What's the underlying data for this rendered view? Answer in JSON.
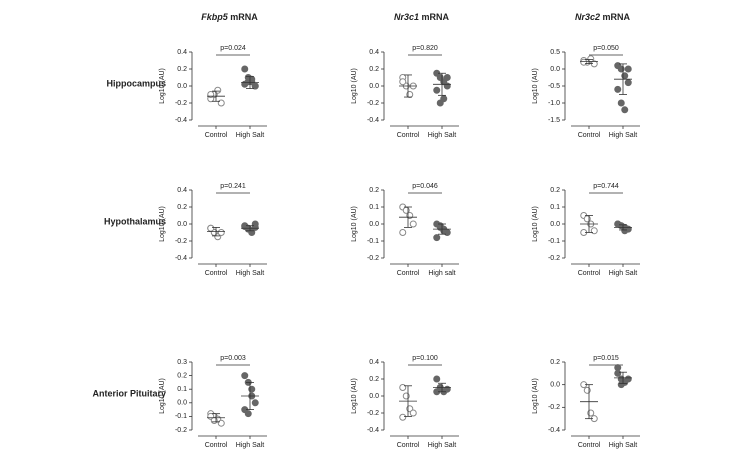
{
  "columns": [
    {
      "gene": "Fkbp5",
      "text": "mRNA"
    },
    {
      "gene": "Nr3c1",
      "text": "mRNA"
    },
    {
      "gene": "Nr3c2",
      "text": "mRNA"
    }
  ],
  "rows": [
    "Hippocampus",
    "Hypothalamus",
    "Anterior Pituitary"
  ],
  "chart_data": [
    {
      "type": "dot",
      "ylabel": "Log10 (AU)",
      "annotation": "p=0.024",
      "ylim": [
        -0.4,
        0.4
      ],
      "yticks": [
        -0.4,
        -0.2,
        {
          "value": 0,
          "label": "0.0"
        },
        0.2,
        0.4
      ],
      "groups": [
        {
          "name": "Control",
          "color": "#888888",
          "filled": false,
          "values": [
            -0.15,
            -0.1,
            -0.05,
            -0.2,
            -0.1
          ],
          "mean": -0.12,
          "sd": 0.06
        },
        {
          "name": "High Salt",
          "color": "#666666",
          "filled": true,
          "values": [
            0.2,
            0.1,
            0.05,
            0.0,
            0.02,
            0.05,
            0.08,
            0.0
          ],
          "mean": 0.04,
          "sd": 0.07
        }
      ]
    },
    {
      "type": "dot",
      "ylabel": "Log10 (AU)",
      "annotation": "p=0.820",
      "ylim": [
        -0.4,
        0.4
      ],
      "yticks": [
        -0.4,
        -0.2,
        {
          "value": 0,
          "label": "0.0"
        },
        0.2,
        0.4
      ],
      "groups": [
        {
          "name": "Control",
          "color": "#888888",
          "filled": false,
          "values": [
            0.1,
            0.0,
            -0.1,
            0.0,
            0.05
          ],
          "mean": 0.0,
          "sd": 0.13
        },
        {
          "name": "High Salt",
          "color": "#666666",
          "filled": true,
          "values": [
            0.15,
            0.1,
            0.05,
            0.0,
            -0.05,
            -0.2,
            -0.15,
            0.1
          ],
          "mean": 0.02,
          "sd": 0.13
        }
      ]
    },
    {
      "type": "dot",
      "ylabel": "Log10 (AU)",
      "annotation": "p=0.050",
      "ylim": [
        -1.5,
        0.5
      ],
      "yticks": [
        -1.5,
        {
          "value": -1,
          "label": "-1.0"
        },
        -0.5,
        {
          "value": 0,
          "label": "0.0"
        },
        0.5
      ],
      "groups": [
        {
          "name": "Control",
          "color": "#888888",
          "filled": false,
          "values": [
            0.25,
            0.2,
            0.3,
            0.15,
            0.2
          ],
          "mean": 0.22,
          "sd": 0.06
        },
        {
          "name": "High Salt",
          "color": "#666666",
          "filled": true,
          "values": [
            0.1,
            0.0,
            -0.2,
            -0.4,
            -0.6,
            -1.0,
            -1.2,
            0.0
          ],
          "mean": -0.3,
          "sd": 0.45
        }
      ]
    },
    {
      "type": "dot",
      "ylabel": "Log10 (AU)",
      "annotation": "p=0.241",
      "ylim": [
        -0.4,
        0.4
      ],
      "yticks": [
        -0.4,
        -0.2,
        {
          "value": 0,
          "label": "0.0"
        },
        0.2,
        0.4
      ],
      "groups": [
        {
          "name": "Control",
          "color": "#888888",
          "filled": false,
          "values": [
            -0.05,
            -0.1,
            -0.15,
            -0.1,
            -0.05
          ],
          "mean": -0.09,
          "sd": 0.05
        },
        {
          "name": "High Salt",
          "color": "#666666",
          "filled": true,
          "values": [
            -0.02,
            -0.05,
            -0.08,
            0.0,
            -0.03,
            -0.06,
            -0.1,
            -0.04
          ],
          "mean": -0.05,
          "sd": 0.03
        }
      ]
    },
    {
      "type": "dot",
      "ylabel": "Log10 (AU)",
      "annotation": "p=0.046",
      "ylim": [
        -0.2,
        0.2
      ],
      "yticks": [
        -0.2,
        -0.1,
        {
          "value": 0,
          "label": "0.0"
        },
        0.1,
        0.2
      ],
      "groups": [
        {
          "name": "Control",
          "color": "#888888",
          "filled": false,
          "values": [
            0.1,
            0.08,
            0.05,
            0.0,
            -0.05
          ],
          "mean": 0.04,
          "sd": 0.06
        },
        {
          "name": "High salt",
          "color": "#666666",
          "filled": true,
          "values": [
            0.0,
            -0.02,
            -0.03,
            -0.05,
            -0.08,
            -0.01,
            -0.04
          ],
          "mean": -0.03,
          "sd": 0.03
        }
      ]
    },
    {
      "type": "dot",
      "ylabel": "Log10 (AU)",
      "annotation": "p=0.744",
      "ylim": [
        -0.2,
        0.2
      ],
      "yticks": [
        -0.2,
        -0.1,
        {
          "value": 0,
          "label": "0.0"
        },
        0.1,
        0.2
      ],
      "groups": [
        {
          "name": "Control",
          "color": "#888888",
          "filled": false,
          "values": [
            0.05,
            0.03,
            0.0,
            -0.04,
            -0.05
          ],
          "mean": 0.0,
          "sd": 0.05
        },
        {
          "name": "High Salt",
          "color": "#666666",
          "filled": true,
          "values": [
            0.0,
            -0.01,
            -0.02,
            -0.03,
            0.0,
            -0.01,
            -0.04
          ],
          "mean": -0.02,
          "sd": 0.015
        }
      ]
    },
    {
      "type": "dot",
      "ylabel": "Log10 (AU)",
      "annotation": "p=0.003",
      "ylim": [
        -0.2,
        0.3
      ],
      "yticks": [
        -0.2,
        -0.1,
        {
          "value": 0,
          "label": "0.0"
        },
        0.1,
        0.2,
        0.3
      ],
      "groups": [
        {
          "name": "Control",
          "color": "#888888",
          "filled": false,
          "values": [
            -0.08,
            -0.1,
            -0.12,
            -0.15,
            -0.1,
            -0.13
          ],
          "mean": -0.11,
          "sd": 0.03
        },
        {
          "name": "High Salt",
          "color": "#666666",
          "filled": true,
          "values": [
            0.2,
            0.15,
            0.05,
            0.0,
            -0.05,
            -0.08,
            0.1
          ],
          "mean": 0.05,
          "sd": 0.1
        }
      ]
    },
    {
      "type": "dot",
      "ylabel": "Log10 (AU)",
      "annotation": "p=0.100",
      "ylim": [
        -0.4,
        0.4
      ],
      "yticks": [
        -0.4,
        -0.2,
        {
          "value": 0,
          "label": "0.0"
        },
        0.2,
        0.4
      ],
      "groups": [
        {
          "name": "Control",
          "color": "#888888",
          "filled": false,
          "values": [
            0.1,
            0.0,
            -0.15,
            -0.2,
            -0.25
          ],
          "mean": -0.06,
          "sd": 0.18
        },
        {
          "name": "High Salt",
          "color": "#666666",
          "filled": true,
          "values": [
            0.2,
            0.1,
            0.05,
            0.08,
            0.05,
            0.1
          ],
          "mean": 0.1,
          "sd": 0.05
        }
      ]
    },
    {
      "type": "dot",
      "ylabel": "Log10 (AU)",
      "annotation": "p=0.015",
      "ylim": [
        -0.4,
        0.2
      ],
      "yticks": [
        -0.4,
        -0.2,
        {
          "value": 0,
          "label": "0.0"
        },
        0.2
      ],
      "groups": [
        {
          "name": "Control",
          "color": "#888888",
          "filled": false,
          "values": [
            0.0,
            -0.05,
            -0.25,
            -0.3
          ],
          "mean": -0.15,
          "sd": 0.15
        },
        {
          "name": "High Salt",
          "color": "#666666",
          "filled": true,
          "values": [
            0.15,
            0.05,
            0.02,
            0.05,
            0.1,
            0.0
          ],
          "mean": 0.06,
          "sd": 0.05
        }
      ]
    }
  ]
}
